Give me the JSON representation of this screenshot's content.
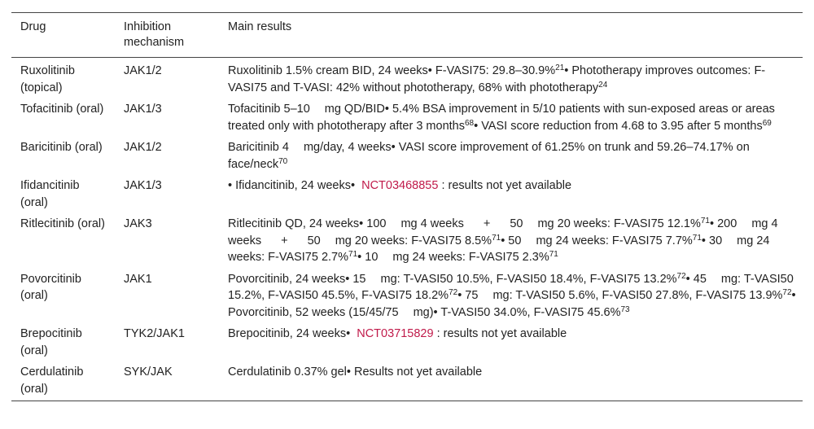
{
  "header": {
    "drug": "Drug",
    "mechanism": "Inhibition mechanism",
    "results": "Main results"
  },
  "rows": [
    {
      "drug": "Ruxolitinib (topical)",
      "mechanism": "JAK1/2",
      "r": [
        "Ruxolitinib 1.5% cream BID, 24 weeks• F-VASI75: 29.8–30.9%",
        "21",
        "• Phototherapy improves outcomes: F-VASI75 and T-VASI: 42% without phototherapy, 68% with phototherapy",
        "24"
      ]
    },
    {
      "drug": "Tofacitinib (oral)",
      "mechanism": "JAK1/3",
      "r": [
        "Tofacitinib 5–10",
        "mg QD/BID• 5.4% BSA improvement in 5/10 patients with sun-exposed areas or areas treated only with phototherapy after 3 months",
        "68",
        "• VASI score reduction from 4.68 to 3.95 after 5 months",
        "69"
      ]
    },
    {
      "drug": "Baricitinib (oral)",
      "mechanism": "JAK1/2",
      "r": [
        "Baricitinib 4",
        "mg/day, 4 weeks• VASI score improvement of 61.25% on trunk and 59.26–74.17% on face/neck",
        "70"
      ]
    },
    {
      "drug": "Ifidancitinib (oral)",
      "mechanism": "JAK1/3",
      "r": [
        "• Ifidancitinib, 24 weeks•",
        "NCT03468855",
        ": results not yet available"
      ]
    },
    {
      "drug": "Ritlecitinib (oral)",
      "mechanism": "JAK3",
      "r": [
        "Ritlecitinib QD, 24 weeks• 100",
        "mg 4 weeks",
        "+",
        "50",
        "mg 20 weeks: F-VASI75 12.1%",
        "71",
        "• 200",
        "mg 4 weeks",
        "+",
        "50",
        "mg 20 weeks: F-VASI75 8.5%",
        "71",
        "• 50",
        "mg 24 weeks: F-VASI75 7.7%",
        "71",
        "• 30",
        "mg 24 weeks: F-VASI75 2.7%",
        "71",
        "• 10",
        "mg 24 weeks: F-VASI75 2.3%",
        "71"
      ]
    },
    {
      "drug": "Povorcitinib (oral)",
      "mechanism": "JAK1",
      "r": [
        "Povorcitinib, 24 weeks• 15",
        "mg: T-VASI50 10.5%, F-VASI50 18.4%, F-VASI75 13.2%",
        "72",
        "• 45",
        "mg: T-VASI50 15.2%, F-VASI50 45.5%, F-VASI75 18.2%",
        "72",
        "• 75",
        "mg: T-VASI50 5.6%, F-VASI50 27.8%, F-VASI75 13.9%",
        "72",
        "• Povorcitinib, 52 weeks (15/45/75",
        "mg)• T-VASI50 34.0%, F-VASI75 45.6%",
        "73"
      ]
    },
    {
      "drug": "Brepocitinib (oral)",
      "mechanism": "TYK2/JAK1",
      "r": [
        "Brepocitinib, 24 weeks•",
        "NCT03715829",
        ": results not yet available"
      ]
    },
    {
      "drug": "Cerdulatinib (oral)",
      "mechanism": "SYK/JAK",
      "r": [
        "Cerdulatinib 0.37% gel• Results not yet available"
      ]
    }
  ]
}
